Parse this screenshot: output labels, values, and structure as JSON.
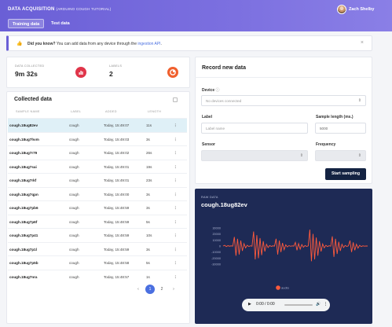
{
  "header": {
    "title": "DATA ACQUISITION",
    "subtitle": "(ARDUINO COUGH TUTORIAL)",
    "tabs": [
      {
        "label": "Training data",
        "active": true
      },
      {
        "label": "Test data",
        "active": false
      }
    ],
    "user": {
      "name": "Zach Shelby"
    }
  },
  "banner": {
    "icon": "thumbs-up-icon",
    "lead": "Did you know?",
    "text": "You can add data from any device through the",
    "link": "ingestion API",
    "suffix": "."
  },
  "stats": {
    "data_collected": {
      "label": "DATA COLLECTED",
      "value": "9m 32s",
      "color": "#e0354a"
    },
    "labels": {
      "label": "LABELS",
      "value": "2",
      "color": "#f0602e"
    }
  },
  "collected": {
    "title": "Collected data",
    "columns": [
      "SAMPLE NAME",
      "LABEL",
      "ADDED",
      "LENGTH"
    ],
    "rows": [
      {
        "name": "cough.18ug82ev",
        "label": "cough",
        "added": "Today, 15:49:07",
        "length": "11s",
        "selected": true
      },
      {
        "name": "cough.18ug7hvm",
        "label": "cough",
        "added": "Today, 15:49:03",
        "length": "3s"
      },
      {
        "name": "cough.18ug7r79",
        "label": "cough",
        "added": "Today, 15:49:02",
        "length": "26s"
      },
      {
        "name": "cough.18ug7sai",
        "label": "cough",
        "added": "Today, 15:49:01",
        "length": "19s"
      },
      {
        "name": "cough.18ug7rkf",
        "label": "cough",
        "added": "Today, 15:49:01",
        "length": "23s"
      },
      {
        "name": "cough.18ug7qpn",
        "label": "cough",
        "added": "Today, 15:49:00",
        "length": "3s"
      },
      {
        "name": "cough.18ug7pb6",
        "label": "cough",
        "added": "Today, 15:48:59",
        "length": "3s"
      },
      {
        "name": "cough.18ug7p6f",
        "label": "cough",
        "added": "Today, 15:48:59",
        "length": "5s"
      },
      {
        "name": "cough.18ug7p41",
        "label": "cough",
        "added": "Today, 15:48:59",
        "length": "10s"
      },
      {
        "name": "cough.18ug7p1l",
        "label": "cough",
        "added": "Today, 15:48:59",
        "length": "3s"
      },
      {
        "name": "cough.18ug7p5b",
        "label": "cough",
        "added": "Today, 15:48:58",
        "length": "5s"
      },
      {
        "name": "cough.18ug7nra",
        "label": "cough",
        "added": "Today, 15:48:57",
        "length": "1s"
      }
    ],
    "pagination": {
      "prev": "‹",
      "pages": [
        "1",
        "2"
      ],
      "current": "1",
      "next": "›"
    }
  },
  "record": {
    "title": "Record new data",
    "device_label": "Device",
    "device_value": "No devices connected",
    "label_label": "Label",
    "label_placeholder": "Label name",
    "sample_length_label": "Sample length (ms.)",
    "sample_length_value": "5000",
    "sensor_label": "Sensor",
    "frequency_label": "Frequency",
    "start_button": "Start sampling"
  },
  "raw": {
    "kicker": "RAW DATA",
    "title": "cough.18ug82ev",
    "legend": "audio",
    "line_color": "#ff5a3c",
    "audio_time": "0:00 / 0:00"
  },
  "chart_data": {
    "type": "line",
    "series": [
      {
        "name": "audio",
        "values": [
          0,
          1200,
          -900,
          600,
          -300,
          300,
          -200,
          15000,
          -16000,
          12000,
          -14000,
          9000,
          -8000,
          4000,
          -3000,
          1200,
          -800,
          400,
          -200,
          24000,
          -22000,
          18000,
          -20000,
          13000,
          -15000,
          8000,
          -9000,
          3000,
          -2500,
          900,
          -600,
          300,
          -150,
          12000,
          -14000,
          9000,
          -10000,
          5000,
          -6000,
          2000,
          -1500,
          700,
          -400,
          200,
          -100,
          6000,
          -7000,
          4000,
          -5000,
          2500,
          -2000,
          900,
          -700,
          300,
          27000,
          -25000,
          20000,
          -22000,
          14000,
          -16000,
          8000,
          -9000,
          3500,
          -3000,
          1200,
          -900,
          500,
          -300,
          16000,
          -18000,
          12000,
          -13000,
          7000,
          -8000,
          3000,
          -2500,
          1000,
          -700,
          300,
          9000,
          -10000,
          6000,
          -7000,
          3000,
          -3500,
          1200,
          -1000,
          400,
          -200,
          100,
          0
        ]
      }
    ],
    "y_ticks": [
      "30000",
      "20000",
      "10000",
      "0",
      "-10000",
      "-20000",
      "-30000"
    ],
    "ylim": [
      -35000,
      35000
    ]
  }
}
